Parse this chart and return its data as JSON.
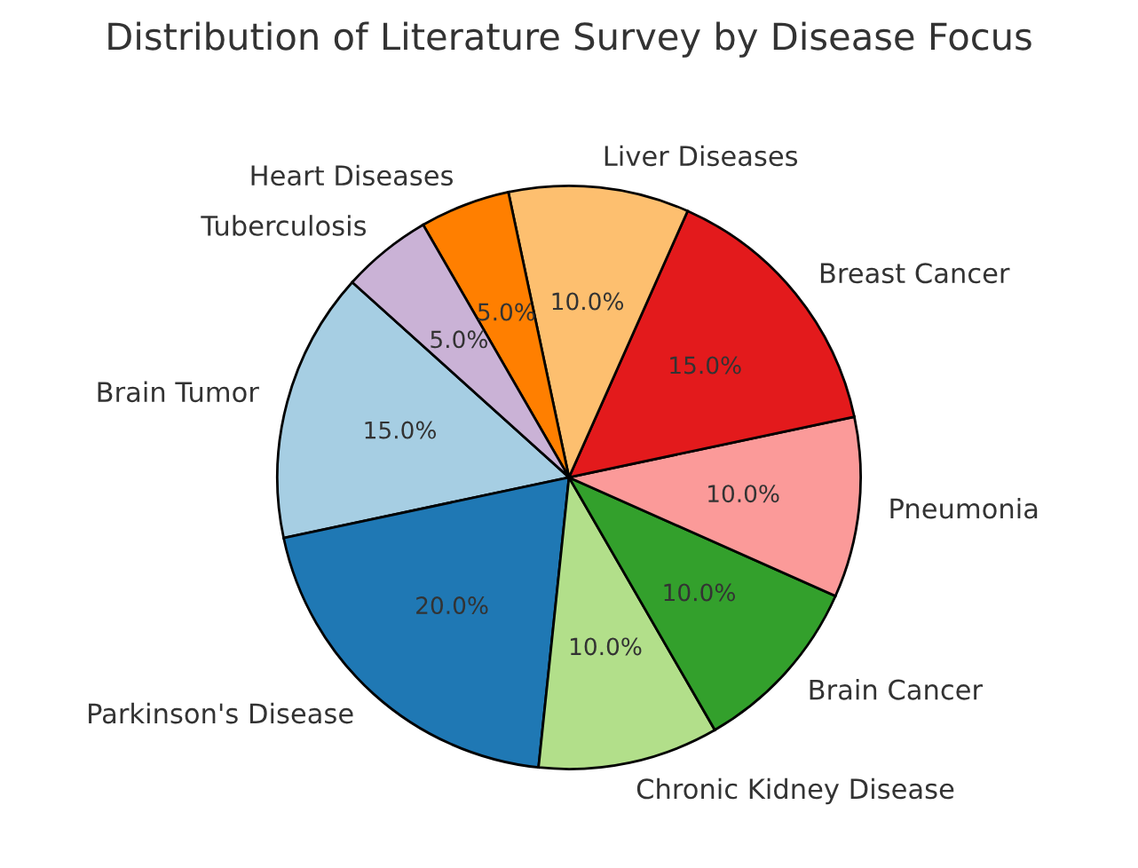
{
  "chart_data": {
    "type": "pie",
    "title": "Distribution of Literature Survey by Disease Focus",
    "categories": [
      "Brain Tumor",
      "Parkinson's Disease",
      "Chronic Kidney Disease",
      "Brain Cancer",
      "Pneumonia",
      "Breast Cancer",
      "Liver Diseases",
      "Heart Diseases",
      "Tuberculosis"
    ],
    "values": [
      15,
      20,
      10,
      10,
      10,
      15,
      10,
      5,
      5
    ],
    "colors": [
      "#a6cee3",
      "#1f78b4",
      "#b2df8a",
      "#33a02c",
      "#fb9a99",
      "#e31a1c",
      "#fdbf6f",
      "#ff7f00",
      "#cab2d6"
    ],
    "value_labels": [
      "15.0%",
      "20.0%",
      "10.0%",
      "10.0%",
      "10.0%",
      "15.0%",
      "10.0%",
      "5.0%",
      "5.0%"
    ]
  }
}
